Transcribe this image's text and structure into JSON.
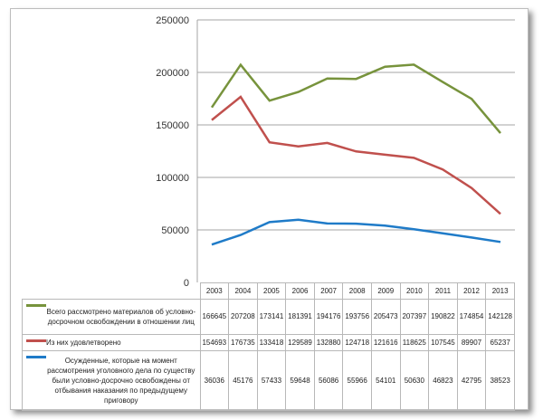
{
  "chart_data": {
    "type": "line",
    "categories": [
      "2003",
      "2004",
      "2005",
      "2006",
      "2007",
      "2008",
      "2009",
      "2010",
      "2011",
      "2012",
      "2013"
    ],
    "ylim": [
      0,
      250000
    ],
    "yticks": [
      "0",
      "50000",
      "100000",
      "150000",
      "200000",
      "250000"
    ],
    "grid": true,
    "legend_placement": "data-table-below",
    "series": [
      {
        "name": "Всего рассмотрено материалов  об условно-досрочном освобождении в отношении лиц",
        "color": "#77933c",
        "values": [
          166645,
          207208,
          173141,
          181391,
          194176,
          193756,
          205473,
          207397,
          190822,
          174854,
          142128
        ]
      },
      {
        "name": "Из них удовлетворено",
        "color": "#c0504d",
        "values": [
          154693,
          176735,
          133418,
          129589,
          132880,
          124718,
          121616,
          118625,
          107545,
          89907,
          65237
        ]
      },
      {
        "name": "Осужденные, которые на момент рассмотрения уголовного дела по существу были условно-досрочно освобождены от отбывания наказания по предыдущему приговору",
        "color": "#1f7bc8",
        "values": [
          36036,
          45176,
          57433,
          59648,
          56086,
          55966,
          54101,
          50630,
          46823,
          42795,
          38523
        ]
      }
    ]
  }
}
